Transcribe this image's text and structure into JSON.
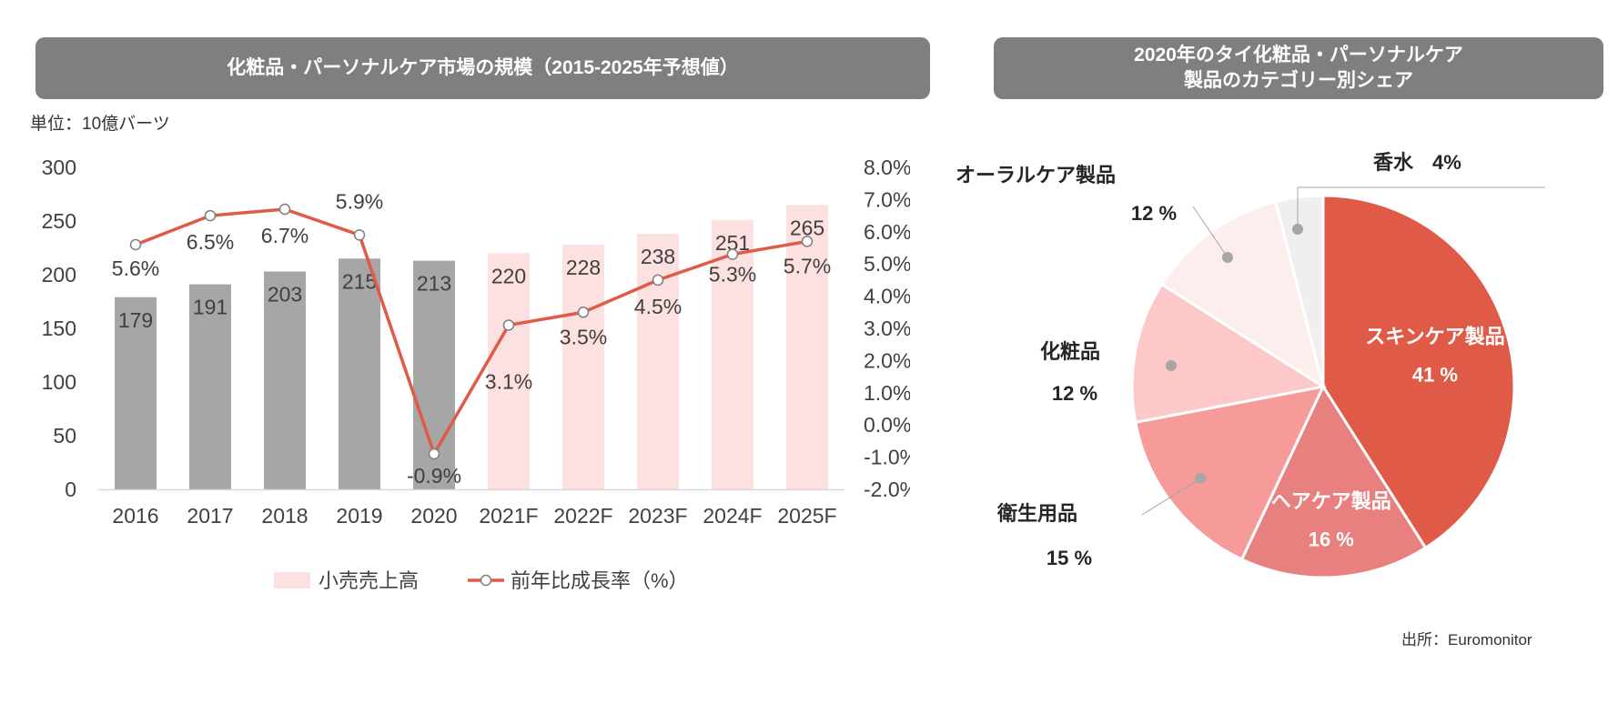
{
  "left_chart": {
    "title": "化粧品・パーソナルケア市場の規模（2015-2025年予想値）",
    "unit": "単位：10億バーツ"
  },
  "right_chart": {
    "title_line1": "2020年のタイ化粧品・パーソナルケア",
    "title_line2": "製品のカテゴリー別シェア"
  },
  "source": "出所：Euromonitor",
  "colors": {
    "bar_actual": "#a6a6a6",
    "bar_forecast": "#fde0e0",
    "line": "#e05a48",
    "banner": "#7f7f7f"
  },
  "chart_data": [
    {
      "type": "bar",
      "categories": [
        "2016",
        "2017",
        "2018",
        "2019",
        "2020",
        "2021F",
        "2022F",
        "2023F",
        "2024F",
        "2025F"
      ],
      "series": [
        {
          "name": "小売売上高",
          "axis": "left",
          "values": [
            179,
            191,
            203,
            215,
            213,
            220,
            228,
            238,
            251,
            265
          ]
        },
        {
          "name": "前年比成長率（%）",
          "type": "line",
          "axis": "right",
          "values": [
            5.6,
            6.5,
            6.7,
            5.9,
            -0.9,
            3.1,
            3.5,
            4.5,
            5.3,
            5.7
          ]
        }
      ],
      "value_labels": [
        "179",
        "191",
        "203",
        "215",
        "213",
        "220",
        "228",
        "238",
        "251",
        "265"
      ],
      "rate_labels": [
        "5.6%",
        "6.5%",
        "6.7%",
        "5.9%",
        "-0.9%",
        "3.1%",
        "3.5%",
        "4.5%",
        "5.3%",
        "5.7%"
      ],
      "ylim_left": [
        0,
        300
      ],
      "yticks_left": [
        "0",
        "50",
        "100",
        "150",
        "200",
        "250",
        "300"
      ],
      "ylim_right": [
        -2.0,
        8.0
      ],
      "yticks_right": [
        "-2.0%",
        "-1.0%",
        "0.0%",
        "1.0%",
        "2.0%",
        "3.0%",
        "4.0%",
        "5.0%",
        "6.0%",
        "7.0%",
        "8.0%"
      ],
      "legend_position": "bottom",
      "grid": false
    },
    {
      "type": "pie",
      "slices": [
        {
          "label": "スキンケア製品",
          "value": 41,
          "pct": "41 %",
          "color": "#e05a48",
          "label_inside": true
        },
        {
          "label": "ヘアケア製品",
          "value": 16,
          "pct": "16 %",
          "color": "#e98080",
          "label_inside": true
        },
        {
          "label": "衛生用品",
          "value": 15,
          "pct": "15 %",
          "color": "#f79a9a",
          "label_inside": false
        },
        {
          "label": "化粧品",
          "value": 12,
          "pct": "12 %",
          "color": "#fcc8c8",
          "label_inside": false
        },
        {
          "label": "オーラルケア製品",
          "value": 12,
          "pct": "12 %",
          "color": "#fdeeee",
          "label_inside": false
        },
        {
          "label": "香水",
          "value": 4,
          "pct": "4%",
          "color": "#efefef",
          "label_inside": false
        }
      ]
    }
  ]
}
